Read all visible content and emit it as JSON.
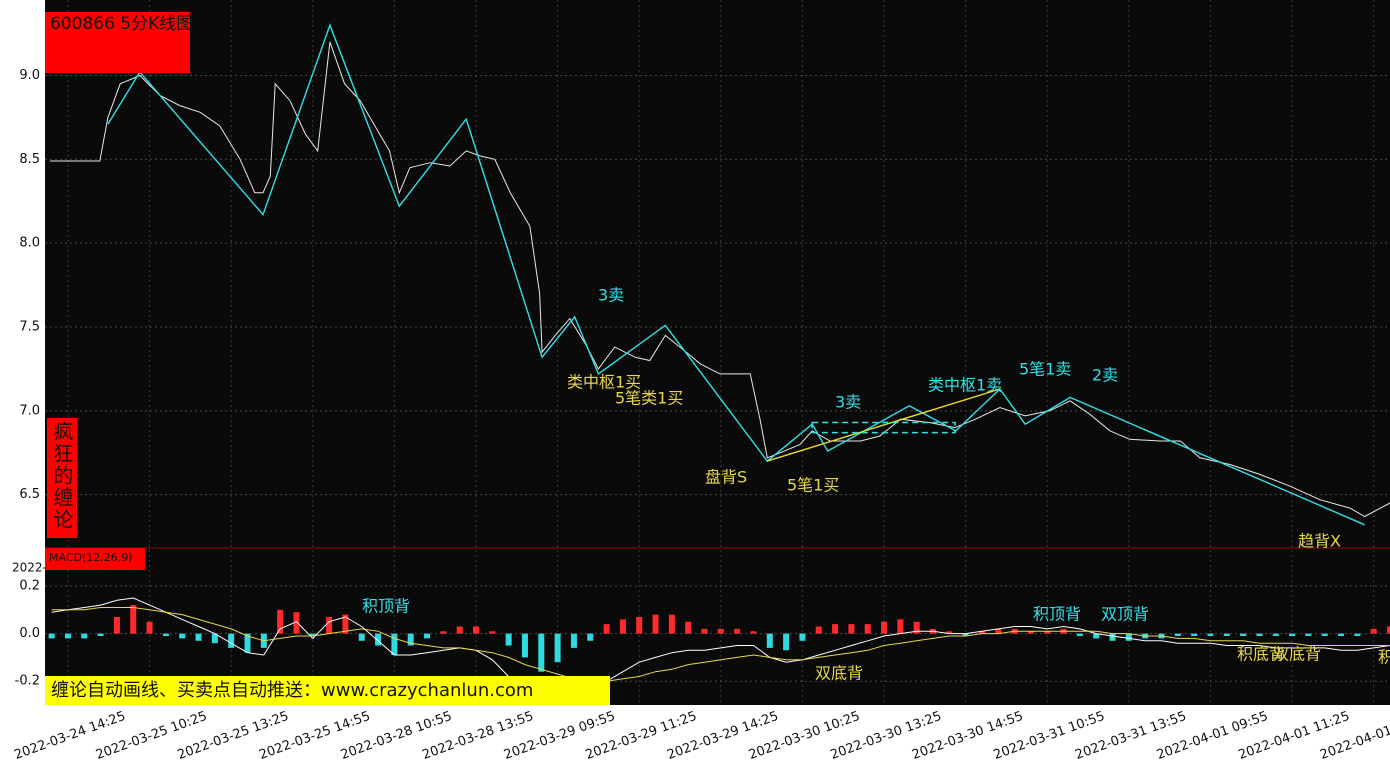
{
  "chart_data": [
    {
      "type": "line",
      "title": "600866 5分K线图",
      "side_label": "疯狂的缠论",
      "xlim": [
        -0.22,
        16.2
      ],
      "xticks": [
        {
          "value": 0,
          "label": "2022-03-24 14:25"
        },
        {
          "value": 1,
          "label": "2022-03-25 10:25"
        },
        {
          "value": 2,
          "label": "2022-03-25 13:25"
        },
        {
          "value": 3,
          "label": "2022-03-25 14:55"
        },
        {
          "value": 4,
          "label": "2022-03-28 10:55"
        },
        {
          "value": 5,
          "label": "2022-03-28 13:55"
        },
        {
          "value": 6,
          "label": "2022-03-29 09:55"
        },
        {
          "value": 7,
          "label": "2022-03-29 11:25"
        },
        {
          "value": 8,
          "label": "2022-03-29 14:25"
        },
        {
          "value": 9,
          "label": "2022-03-30 10:25"
        },
        {
          "value": 10,
          "label": "2022-03-30 13:25"
        },
        {
          "value": 11,
          "label": "2022-03-30 14:55"
        },
        {
          "value": 12,
          "label": "2022-03-31 10:55"
        },
        {
          "value": 13,
          "label": "2022-03-31 13:55"
        },
        {
          "value": 14,
          "label": "2022-04-01 09:55"
        },
        {
          "value": 15,
          "label": "2022-04-01 11:25"
        },
        {
          "value": 16,
          "label": "2022-04-01"
        }
      ],
      "ylim": [
        6.17,
        9.45
      ],
      "yticks": [
        6.5,
        {
          "value": 7,
          "label": "7.0"
        },
        7.5,
        {
          "value": 8,
          "label": "8.0"
        },
        8.5,
        {
          "value": 9,
          "label": "9.0"
        }
      ],
      "grid": true,
      "series": [
        {
          "color": "#e8e8e8",
          "x": [
            -0.22,
            0.39,
            0.49,
            0.64,
            0.88,
            1.13,
            1.37,
            1.62,
            1.86,
            2.11,
            2.29,
            2.39,
            2.48,
            2.54,
            2.72,
            2.91,
            3.06,
            3.21,
            3.39,
            3.58,
            3.76,
            3.94,
            4.06,
            4.19,
            4.44,
            4.68,
            4.88,
            5.05,
            5.23,
            5.42,
            5.66,
            5.78,
            5.81,
            5.97,
            6.15,
            6.34,
            6.5,
            6.7,
            6.95,
            7.13,
            7.32,
            7.5,
            7.75,
            7.99,
            8.36,
            8.48,
            8.57,
            8.73,
            8.97,
            9.12,
            9.34,
            9.71,
            9.95,
            10.2,
            10.56,
            10.87,
            11.12,
            11.42,
            11.73,
            12.03,
            12.28,
            12.52,
            12.77,
            13.01,
            13.38,
            13.63,
            13.87,
            14.24,
            14.61,
            14.98,
            15.34,
            15.71,
            15.89,
            16.2
          ],
          "values": [
            8.49,
            8.49,
            8.75,
            8.95,
            9.0,
            8.88,
            8.82,
            8.78,
            8.7,
            8.5,
            8.3,
            8.3,
            8.4,
            8.95,
            8.85,
            8.65,
            8.55,
            9.2,
            8.95,
            8.85,
            8.7,
            8.55,
            8.3,
            8.45,
            8.48,
            8.46,
            8.55,
            8.52,
            8.5,
            8.3,
            8.1,
            7.7,
            7.35,
            7.45,
            7.55,
            7.4,
            7.25,
            7.38,
            7.32,
            7.3,
            7.45,
            7.38,
            7.28,
            7.22,
            7.22,
            6.95,
            6.72,
            6.75,
            6.8,
            6.88,
            6.82,
            6.82,
            6.85,
            6.95,
            6.93,
            6.9,
            6.95,
            7.02,
            6.97,
            7.0,
            7.06,
            6.98,
            6.88,
            6.83,
            6.82,
            6.82,
            6.72,
            6.68,
            6.62,
            6.55,
            6.47,
            6.42,
            6.37,
            6.45
          ]
        },
        {
          "color": "#30e0e8",
          "x": [
            0.49,
            0.88,
            2.39,
            3.21,
            4.06,
            4.88,
            5.81,
            6.21,
            6.5,
            7.32,
            8.57,
            9.12,
            9.31,
            10.31,
            10.88,
            11.42,
            11.73,
            12.28,
            15.89
          ],
          "values": [
            8.71,
            9.02,
            8.17,
            9.3,
            8.22,
            8.74,
            7.32,
            7.56,
            7.22,
            7.51,
            6.7,
            6.92,
            6.76,
            7.03,
            6.88,
            7.13,
            6.92,
            7.08,
            6.32
          ]
        },
        {
          "color": "#f0e020",
          "x": [
            8.57,
            11.42
          ],
          "values": [
            6.7,
            7.13
          ]
        }
      ],
      "zones": [
        {
          "x": [
            9.12,
            10.87
          ],
          "y": [
            6.87,
            6.93
          ],
          "color": "#30e0e8"
        }
      ],
      "annotations": [
        {
          "text": "3卖",
          "color": "#30e0e8"
        },
        {
          "text": "类中枢1买",
          "color": "#e6d84a"
        },
        {
          "text": "5笔类1买",
          "color": "#e6d84a"
        },
        {
          "text": "盘背S",
          "color": "#e6d84a"
        },
        {
          "text": "5笔1买",
          "color": "#e6d84a"
        },
        {
          "text": "3卖",
          "color": "#30e0e8"
        },
        {
          "text": "类中枢1卖",
          "color": "#30e0e8"
        },
        {
          "text": "5笔1卖",
          "color": "#30e0e8"
        },
        {
          "text": "2卖",
          "color": "#30e0e8"
        },
        {
          "text": "趋背X",
          "color": "#e6d84a"
        }
      ]
    },
    {
      "type": "macd",
      "title": "MACD(12,26,9)",
      "corner_label": "2022-",
      "banner": "缠论自动画线、买卖点自动推送：www.crazychanlun.com",
      "xlim": [
        -0.22,
        16.2
      ],
      "ylim": [
        -0.3,
        0.36
      ],
      "yticks": [
        -0.2,
        {
          "value": 0,
          "label": "0.0"
        },
        0.2
      ],
      "x": [
        -0.2,
        0,
        0.2,
        0.4,
        0.6,
        0.8,
        1.0,
        1.2,
        1.4,
        1.6,
        1.8,
        2.0,
        2.2,
        2.4,
        2.6,
        2.8,
        3.0,
        3.2,
        3.4,
        3.6,
        3.8,
        4.0,
        4.2,
        4.4,
        4.6,
        4.8,
        5.0,
        5.2,
        5.4,
        5.6,
        5.8,
        6.0,
        6.2,
        6.4,
        6.6,
        6.8,
        7.0,
        7.2,
        7.4,
        7.6,
        7.8,
        8.0,
        8.2,
        8.4,
        8.6,
        8.8,
        9.0,
        9.2,
        9.4,
        9.6,
        9.8,
        10.0,
        10.2,
        10.4,
        10.6,
        10.8,
        11.0,
        11.2,
        11.4,
        11.6,
        11.8,
        12.0,
        12.2,
        12.4,
        12.6,
        12.8,
        13.0,
        13.2,
        13.4,
        13.6,
        13.8,
        14.0,
        14.2,
        14.4,
        14.6,
        14.8,
        15.0,
        15.2,
        15.4,
        15.6,
        15.8,
        16.0,
        16.2
      ],
      "series": [
        {
          "kind": "bar",
          "up_color": "#ff2a2a",
          "down_color": "#30d8e0",
          "values": [
            -0.02,
            -0.02,
            -0.02,
            -0.01,
            0.07,
            0.12,
            0.05,
            -0.01,
            -0.02,
            -0.03,
            -0.04,
            -0.06,
            -0.08,
            -0.06,
            0.1,
            0.09,
            -0.01,
            0.07,
            0.08,
            -0.03,
            -0.05,
            -0.09,
            -0.05,
            -0.02,
            0.01,
            0.03,
            0.03,
            0.01,
            -0.05,
            -0.1,
            -0.16,
            -0.12,
            -0.06,
            -0.03,
            0.04,
            0.06,
            0.07,
            0.08,
            0.08,
            0.05,
            0.02,
            0.02,
            0.02,
            0.01,
            -0.06,
            -0.07,
            -0.03,
            0.03,
            0.04,
            0.04,
            0.04,
            0.05,
            0.06,
            0.05,
            0.02,
            0.01,
            -0.01,
            0.01,
            0.02,
            0.02,
            0.01,
            0.01,
            0.02,
            -0.01,
            -0.02,
            -0.03,
            -0.03,
            -0.02,
            -0.02,
            -0.01,
            -0.01,
            -0.01,
            -0.01,
            -0.01,
            -0.01,
            -0.01,
            -0.01,
            -0.01,
            -0.01,
            -0.01,
            -0.01,
            0.02,
            0.03
          ]
        },
        {
          "kind": "line",
          "color": "#ffffff",
          "values": [
            0.09,
            0.1,
            0.11,
            0.12,
            0.14,
            0.15,
            0.12,
            0.09,
            0.06,
            0.03,
            0.0,
            -0.04,
            -0.08,
            -0.09,
            0.02,
            0.05,
            -0.02,
            0.05,
            0.07,
            0.03,
            -0.03,
            -0.09,
            -0.09,
            -0.08,
            -0.07,
            -0.06,
            -0.07,
            -0.11,
            -0.18,
            -0.24,
            -0.28,
            -0.28,
            -0.26,
            -0.24,
            -0.2,
            -0.16,
            -0.12,
            -0.1,
            -0.08,
            -0.07,
            -0.07,
            -0.06,
            -0.05,
            -0.05,
            -0.1,
            -0.12,
            -0.11,
            -0.09,
            -0.07,
            -0.05,
            -0.03,
            -0.01,
            0.0,
            0.01,
            0.01,
            0.0,
            0.0,
            0.01,
            0.02,
            0.03,
            0.03,
            0.02,
            0.03,
            0.02,
            0.0,
            -0.01,
            -0.02,
            -0.03,
            -0.03,
            -0.04,
            -0.04,
            -0.04,
            -0.05,
            -0.05,
            -0.05,
            -0.06,
            -0.06,
            -0.06,
            -0.06,
            -0.07,
            -0.07,
            -0.06,
            -0.05
          ]
        },
        {
          "kind": "line",
          "color": "#e6d84a",
          "values": [
            0.1,
            0.1,
            0.1,
            0.11,
            0.11,
            0.11,
            0.1,
            0.09,
            0.08,
            0.06,
            0.04,
            0.02,
            -0.01,
            -0.03,
            -0.02,
            -0.01,
            -0.01,
            0.0,
            0.01,
            0.02,
            0.01,
            -0.02,
            -0.04,
            -0.05,
            -0.06,
            -0.06,
            -0.07,
            -0.08,
            -0.1,
            -0.13,
            -0.15,
            -0.17,
            -0.19,
            -0.2,
            -0.2,
            -0.19,
            -0.18,
            -0.16,
            -0.15,
            -0.13,
            -0.12,
            -0.11,
            -0.1,
            -0.09,
            -0.1,
            -0.11,
            -0.11,
            -0.1,
            -0.09,
            -0.08,
            -0.07,
            -0.05,
            -0.04,
            -0.03,
            -0.02,
            -0.01,
            -0.01,
            0.0,
            0.0,
            0.01,
            0.01,
            0.01,
            0.01,
            0.01,
            0.01,
            0.0,
            0.0,
            -0.01,
            -0.01,
            -0.02,
            -0.02,
            -0.03,
            -0.03,
            -0.03,
            -0.04,
            -0.04,
            -0.04,
            -0.05,
            -0.05,
            -0.05,
            -0.05,
            -0.05,
            -0.05
          ]
        }
      ],
      "annotations": [
        {
          "text": "积顶背",
          "color": "#30e0e8"
        },
        {
          "text": "积顶背",
          "color": "#30e0e8"
        },
        {
          "text": "双顶背",
          "color": "#30e0e8"
        },
        {
          "text": "双底背",
          "color": "#e6d84a"
        },
        {
          "text": "积底背",
          "color": "#e6d84a"
        },
        {
          "text": "双底背",
          "color": "#e6d84a"
        },
        {
          "text": "积",
          "color": "#e6d84a"
        }
      ]
    }
  ]
}
